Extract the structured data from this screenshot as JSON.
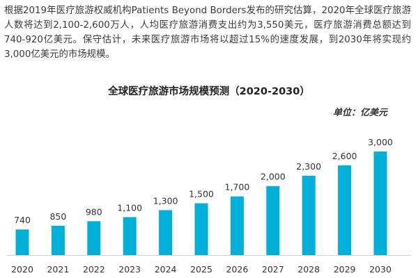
{
  "intro_text": "根据2019年医疗旅游权威机构Patients Beyond Borders发布的研究估算，2020年全球医疗旅游人数将达到2,100-2,600万人，人均医疗旅游消费支出约为3,550美元，医疗旅游消费总额达到740-920亿美元。保守估计，未来医疗旅游市场将以超过15%的速度发展，到2030年将实现约3,000亿美元的市场规模。",
  "colors": {
    "bar": "#00b0d8",
    "axis": "#d0d0d0"
  },
  "chart_data": {
    "type": "bar",
    "title": "全球医疗旅游市场规模预测（2020-2030）",
    "unit_label": "单位：亿美元",
    "categories": [
      "2020",
      "2021",
      "2022",
      "2023",
      "2024",
      "2025",
      "2026",
      "2027",
      "2028",
      "2029",
      "2030"
    ],
    "values": [
      740,
      850,
      980,
      1100,
      1300,
      1500,
      1700,
      2000,
      2300,
      2600,
      3000
    ],
    "value_labels": [
      "740",
      "850",
      "980",
      "1,100",
      "1,300",
      "1,500",
      "1,700",
      "2,000",
      "2,300",
      "2,600",
      "3,000"
    ],
    "ylim": [
      0,
      3000
    ],
    "grid": false,
    "legend": "none"
  }
}
